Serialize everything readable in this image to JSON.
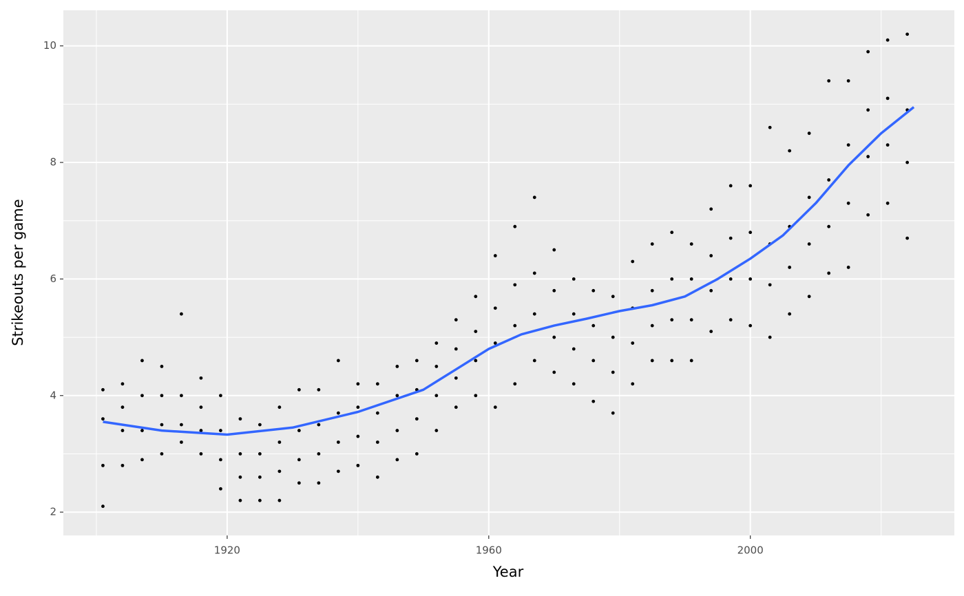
{
  "chart_data": {
    "type": "scatter",
    "xlabel": "Year",
    "ylabel": "Strikeouts per game",
    "xlim": [
      1894.95,
      2031.2
    ],
    "ylim": [
      1.6,
      10.61
    ],
    "xticks": [
      1920,
      1960,
      2000
    ],
    "yticks": [
      2,
      4,
      6,
      8,
      10
    ],
    "xminor_ticks": [
      1900,
      1940,
      1980,
      2020
    ],
    "yminor_ticks": [
      3,
      5,
      7,
      9
    ],
    "grid": true,
    "color": "#000000",
    "x": [
      1901,
      1901,
      1901,
      1901,
      1904,
      1904,
      1904,
      1904,
      1907,
      1907,
      1907,
      1907,
      1910,
      1910,
      1910,
      1910,
      1913,
      1913,
      1913,
      1913,
      1916,
      1916,
      1916,
      1916,
      1919,
      1919,
      1919,
      1919,
      1922,
      1922,
      1922,
      1922,
      1925,
      1925,
      1925,
      1925,
      1928,
      1928,
      1928,
      1928,
      1931,
      1931,
      1931,
      1931,
      1934,
      1934,
      1934,
      1934,
      1937,
      1937,
      1937,
      1937,
      1940,
      1940,
      1940,
      1940,
      1943,
      1943,
      1943,
      1943,
      1946,
      1946,
      1946,
      1946,
      1949,
      1949,
      1949,
      1949,
      1952,
      1952,
      1952,
      1952,
      1955,
      1955,
      1955,
      1955,
      1958,
      1958,
      1958,
      1958,
      1961,
      1961,
      1961,
      1961,
      1964,
      1964,
      1964,
      1964,
      1967,
      1967,
      1967,
      1967,
      1970,
      1970,
      1970,
      1970,
      1973,
      1973,
      1973,
      1973,
      1976,
      1976,
      1976,
      1976,
      1979,
      1979,
      1979,
      1979,
      1982,
      1982,
      1982,
      1982,
      1985,
      1985,
      1985,
      1985,
      1988,
      1988,
      1988,
      1988,
      1991,
      1991,
      1991,
      1991,
      1994,
      1994,
      1994,
      1994,
      1997,
      1997,
      1997,
      1997,
      2000,
      2000,
      2000,
      2000,
      2003,
      2003,
      2003,
      2003,
      2006,
      2006,
      2006,
      2006,
      2009,
      2009,
      2009,
      2009,
      2012,
      2012,
      2012,
      2012,
      2015,
      2015,
      2015,
      2015,
      2018,
      2018,
      2018,
      2018,
      2021,
      2021,
      2021,
      2021,
      2024,
      2024,
      2024,
      2024
    ],
    "values": [
      2.1,
      2.8,
      3.6,
      4.1,
      2.8,
      3.4,
      3.8,
      4.2,
      2.9,
      3.4,
      4.0,
      4.6,
      3.0,
      3.5,
      4.0,
      4.5,
      3.2,
      3.5,
      4.0,
      5.4,
      3.0,
      3.4,
      3.8,
      4.3,
      2.4,
      2.9,
      3.4,
      4.0,
      2.2,
      2.6,
      3.0,
      3.6,
      2.2,
      2.6,
      3.0,
      3.5,
      2.2,
      2.7,
      3.2,
      3.8,
      2.5,
      2.9,
      3.4,
      4.1,
      2.5,
      3.0,
      3.5,
      4.1,
      2.7,
      3.2,
      3.7,
      4.6,
      2.8,
      3.3,
      3.8,
      4.2,
      2.6,
      3.2,
      3.7,
      4.2,
      2.9,
      3.4,
      4.0,
      4.5,
      3.0,
      3.6,
      4.1,
      4.6,
      3.4,
      4.0,
      4.5,
      4.9,
      3.8,
      4.3,
      4.8,
      5.3,
      4.0,
      4.6,
      5.1,
      5.7,
      3.8,
      4.9,
      5.5,
      6.4,
      4.2,
      5.2,
      5.9,
      6.9,
      4.6,
      5.4,
      6.1,
      7.4,
      4.4,
      5.0,
      5.8,
      6.5,
      4.2,
      4.8,
      5.4,
      6.0,
      3.9,
      4.6,
      5.2,
      5.8,
      3.7,
      4.4,
      5.0,
      5.7,
      4.2,
      4.9,
      5.5,
      6.3,
      4.6,
      5.2,
      5.8,
      6.6,
      4.6,
      5.3,
      6.0,
      6.8,
      4.6,
      5.3,
      6.0,
      6.6,
      5.1,
      5.8,
      6.4,
      7.2,
      5.3,
      6.0,
      6.7,
      7.6,
      5.2,
      6.0,
      6.8,
      7.6,
      5.0,
      5.9,
      6.6,
      8.6,
      5.4,
      6.2,
      6.9,
      8.2,
      5.7,
      6.6,
      7.4,
      8.5,
      6.1,
      6.9,
      7.7,
      9.4,
      6.2,
      7.3,
      8.3,
      9.4,
      7.1,
      8.1,
      8.9,
      9.9,
      7.3,
      8.3,
      9.1,
      10.1,
      6.7,
      8.0,
      8.9,
      10.2
    ],
    "smooth": {
      "color": "#3366ff",
      "x": [
        1901,
        1910,
        1920,
        1930,
        1940,
        1950,
        1955,
        1960,
        1965,
        1970,
        1975,
        1980,
        1985,
        1990,
        1995,
        2000,
        2005,
        2010,
        2015,
        2020,
        2025
      ],
      "values": [
        3.55,
        3.4,
        3.33,
        3.45,
        3.72,
        4.1,
        4.45,
        4.8,
        5.05,
        5.2,
        5.32,
        5.45,
        5.55,
        5.7,
        6.0,
        6.35,
        6.75,
        7.3,
        7.95,
        8.5,
        8.95
      ]
    }
  }
}
